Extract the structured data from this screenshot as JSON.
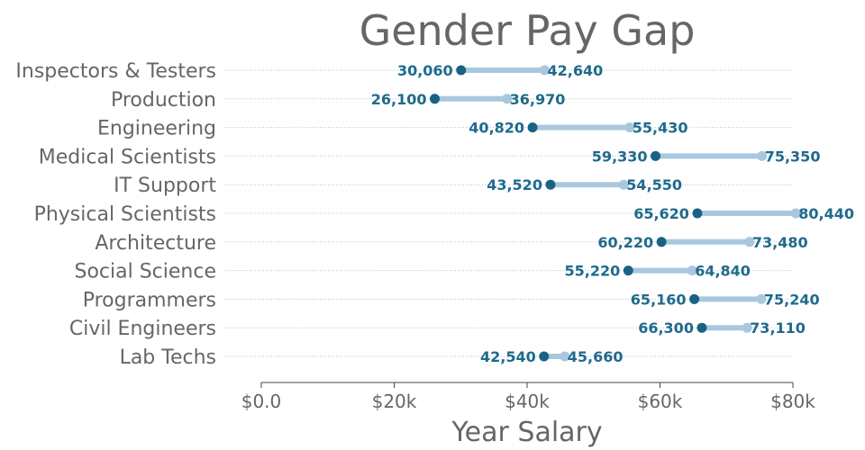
{
  "chart_data": {
    "type": "dumbbell",
    "title": "Gender Pay Gap",
    "xlabel": "Year Salary",
    "ylabel": "",
    "xlim": [
      0,
      80000
    ],
    "x_ticks": [
      0,
      20000,
      40000,
      60000,
      80000
    ],
    "x_tick_labels": [
      "$0.0",
      "$20k",
      "$40k",
      "$60k",
      "$80k"
    ],
    "categories": [
      "Inspectors & Testers",
      "Production",
      "Engineering",
      "Medical Scientists",
      "IT Support",
      "Physical Scientists",
      "Architecture",
      "Social Science",
      "Programmers",
      "Civil Engineers",
      "Lab Techs"
    ],
    "series": [
      {
        "color": "#1a6285",
        "values": [
          30060,
          26100,
          40820,
          59330,
          43520,
          65620,
          60220,
          55220,
          65160,
          66300,
          42540
        ],
        "value_labels": [
          "30,060",
          "26,100",
          "40,820",
          "59,330",
          "43,520",
          "65,620",
          "60,220",
          "55,220",
          "65,160",
          "66,300",
          "42,540"
        ]
      },
      {
        "color": "#a9c8e0",
        "values": [
          42640,
          36970,
          55430,
          75350,
          54550,
          80440,
          73480,
          64840,
          75240,
          73110,
          45660
        ],
        "value_labels": [
          "42,640",
          "36,970",
          "55,430",
          "75,350",
          "54,550",
          "80,440",
          "73,480",
          "64,840",
          "75,240",
          "73,110",
          "45,660"
        ]
      }
    ],
    "grid": "dotted row guides",
    "legend": "none"
  }
}
